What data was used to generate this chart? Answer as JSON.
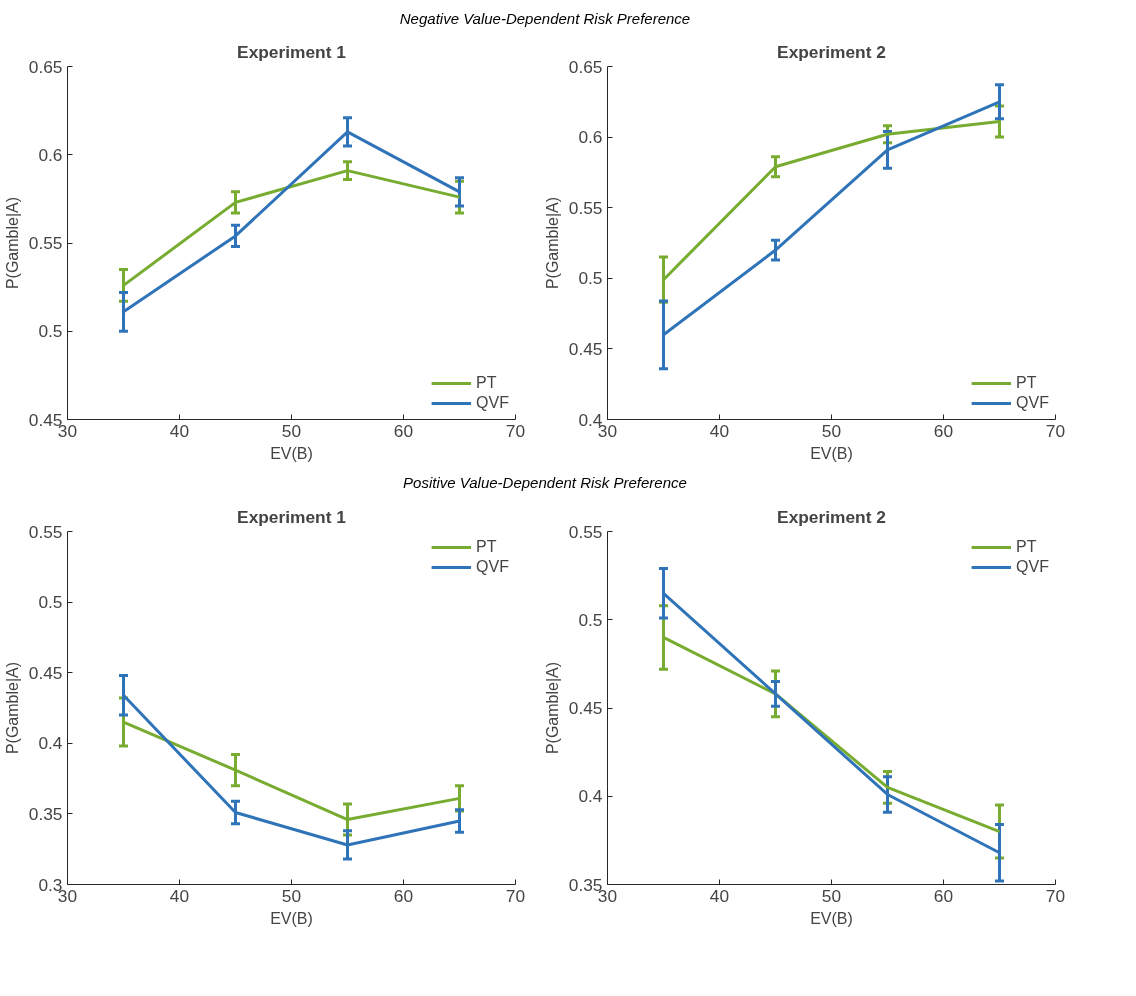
{
  "chart_data": [
    {
      "type": "line",
      "subtitle": "Negative Value-Dependent Risk Preference",
      "title": "Experiment 1",
      "xlabel": "EV(B)",
      "ylabel": "P(Gamble|A)",
      "x": [
        35,
        45,
        55,
        65
      ],
      "xlim": [
        30,
        70
      ],
      "xticks": [
        30,
        40,
        50,
        60,
        70
      ],
      "ylim": [
        0.45,
        0.65
      ],
      "yticks": [
        0.45,
        0.5,
        0.55,
        0.6,
        0.65
      ],
      "grid": false,
      "legend": "bottom right",
      "marker": "none",
      "line_style": "solid",
      "series": [
        {
          "name": "PT",
          "color": "#77ac30",
          "values": [
            0.526,
            0.573,
            0.591,
            0.576
          ],
          "errors": [
            0.009,
            0.006,
            0.005,
            0.009
          ]
        },
        {
          "name": "QVF",
          "color": "#2f73b8",
          "values": [
            0.511,
            0.554,
            0.613,
            0.579
          ],
          "errors": [
            0.011,
            0.006,
            0.008,
            0.008
          ]
        }
      ]
    },
    {
      "type": "line",
      "title": "Experiment 2",
      "xlabel": "EV(B)",
      "ylabel": "P(Gamble|A)",
      "x": [
        35,
        45,
        55,
        65
      ],
      "xlim": [
        30,
        70
      ],
      "xticks": [
        30,
        40,
        50,
        60,
        70
      ],
      "ylim": [
        0.4,
        0.65
      ],
      "yticks": [
        0.4,
        0.45,
        0.5,
        0.55,
        0.6,
        0.65
      ],
      "grid": false,
      "legend": "bottom right",
      "marker": "none",
      "line_style": "solid",
      "series": [
        {
          "name": "PT",
          "color": "#77ac30",
          "values": [
            0.499,
            0.579,
            0.602,
            0.611
          ],
          "errors": [
            0.016,
            0.007,
            0.006,
            0.011
          ]
        },
        {
          "name": "QVF",
          "color": "#2f73b8",
          "values": [
            0.46,
            0.52,
            0.591,
            0.625
          ],
          "errors": [
            0.024,
            0.007,
            0.013,
            0.012
          ]
        }
      ]
    },
    {
      "type": "line",
      "subtitle": "Positive Value-Dependent Risk Preference",
      "title": "Experiment 1",
      "xlabel": "EV(B)",
      "ylabel": "P(Gamble|A)",
      "x": [
        35,
        45,
        55,
        65
      ],
      "xlim": [
        30,
        70
      ],
      "xticks": [
        30,
        40,
        50,
        60,
        70
      ],
      "ylim": [
        0.3,
        0.55
      ],
      "yticks": [
        0.3,
        0.35,
        0.4,
        0.45,
        0.5,
        0.55
      ],
      "grid": false,
      "legend": "top right",
      "marker": "none",
      "line_style": "solid",
      "series": [
        {
          "name": "PT",
          "color": "#77ac30",
          "values": [
            0.415,
            0.381,
            0.346,
            0.361
          ],
          "errors": [
            0.017,
            0.011,
            0.011,
            0.009
          ]
        },
        {
          "name": "QVF",
          "color": "#2f73b8",
          "values": [
            0.434,
            0.351,
            0.328,
            0.345
          ],
          "errors": [
            0.014,
            0.008,
            0.01,
            0.008
          ]
        }
      ]
    },
    {
      "type": "line",
      "title": "Experiment 2",
      "xlabel": "EV(B)",
      "ylabel": "P(Gamble|A)",
      "x": [
        35,
        45,
        55,
        65
      ],
      "xlim": [
        30,
        70
      ],
      "xticks": [
        30,
        40,
        50,
        60,
        70
      ],
      "ylim": [
        0.35,
        0.55
      ],
      "yticks": [
        0.35,
        0.4,
        0.45,
        0.5,
        0.55
      ],
      "grid": false,
      "legend": "top right",
      "marker": "none",
      "line_style": "solid",
      "series": [
        {
          "name": "PT",
          "color": "#77ac30",
          "values": [
            0.49,
            0.458,
            0.405,
            0.38
          ],
          "errors": [
            0.018,
            0.013,
            0.009,
            0.015
          ]
        },
        {
          "name": "QVF",
          "color": "#2f73b8",
          "values": [
            0.515,
            0.458,
            0.401,
            0.368
          ],
          "errors": [
            0.014,
            0.007,
            0.01,
            0.016
          ]
        }
      ]
    }
  ]
}
